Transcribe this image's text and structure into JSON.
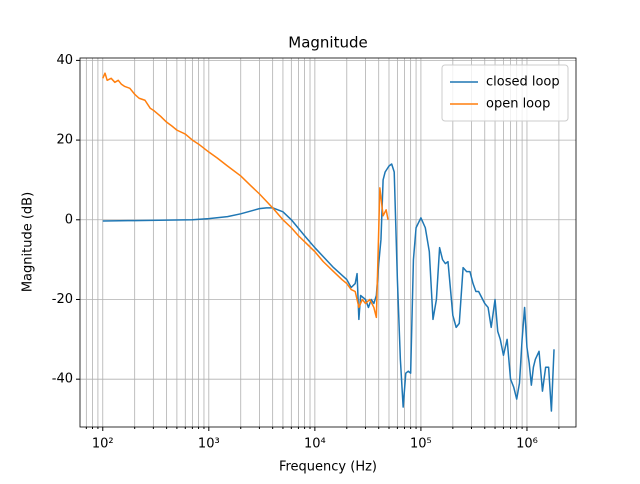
{
  "chart_data": {
    "type": "line",
    "title": "Magnitude",
    "x_label": "Frequency (Hz)",
    "y_label": "Magnitude (dB)",
    "xscale": "log",
    "grid": true,
    "legend": "upper right",
    "xlim": [
      61,
      2900000
    ],
    "ylim": [
      -52,
      40.6
    ],
    "xticks": [
      {
        "value": 100,
        "label": "10²"
      },
      {
        "value": 1000,
        "label": "10³"
      },
      {
        "value": 10000,
        "label": "10⁴"
      },
      {
        "value": 100000,
        "label": "10⁵"
      },
      {
        "value": 1000000,
        "label": "10⁶"
      }
    ],
    "xminorticks": [
      70,
      80,
      90,
      200,
      300,
      400,
      500,
      600,
      700,
      800,
      900,
      2000,
      3000,
      4000,
      5000,
      6000,
      7000,
      8000,
      9000,
      20000,
      30000,
      40000,
      50000,
      60000,
      70000,
      80000,
      90000,
      200000,
      300000,
      400000,
      500000,
      600000,
      700000,
      800000,
      900000,
      2000000
    ],
    "yticks": [
      -40,
      -20,
      0,
      20,
      40
    ],
    "series": [
      {
        "name": "closed loop",
        "color": "#1f77b4",
        "x": [
          100,
          200,
          400,
          700,
          1000,
          1500,
          2000,
          3000,
          3500,
          4000,
          5000,
          6000,
          8000,
          10000,
          15000,
          20000,
          22000,
          24000,
          25000,
          26000,
          27000,
          30000,
          32000,
          34000,
          36000,
          38000,
          40000,
          42000,
          44000,
          46000,
          50000,
          53000,
          56000,
          60000,
          64000,
          68000,
          72000,
          76000,
          80000,
          85000,
          90000,
          100000,
          110000,
          120000,
          130000,
          140000,
          150000,
          160000,
          170000,
          180000,
          200000,
          215000,
          230000,
          250000,
          270000,
          290000,
          310000,
          330000,
          350000,
          400000,
          430000,
          460000,
          500000,
          530000,
          560000,
          600000,
          650000,
          700000,
          750000,
          800000,
          850000,
          900000,
          950000,
          1000000,
          1050000,
          1100000,
          1150000,
          1200000,
          1300000,
          1400000,
          1500000,
          1600000,
          1700000,
          1800000
        ],
        "values": [
          -0.3,
          -0.2,
          -0.1,
          0,
          0.3,
          0.8,
          1.5,
          2.8,
          3,
          3,
          2,
          0,
          -4,
          -7,
          -12,
          -15,
          -17,
          -16,
          -13.5,
          -25,
          -19,
          -20,
          -22,
          -20,
          -21,
          -19,
          -11,
          -5,
          10,
          12,
          13.5,
          14,
          12,
          -15,
          -35,
          -47,
          -38.5,
          -38,
          -38.5,
          -10,
          -2,
          0.5,
          -2,
          -8,
          -25,
          -20,
          -7,
          -10,
          -11,
          -10.5,
          -24,
          -27,
          -26,
          -12,
          -13,
          -13,
          -16,
          -18,
          -18,
          -21,
          -22,
          -27,
          -20,
          -28,
          -30,
          -34,
          -30,
          -40,
          -42,
          -45,
          -41,
          -30,
          -22,
          -32,
          -36,
          -41.5,
          -37,
          -35,
          -33,
          -43,
          -37,
          -37,
          -48,
          -32.5
        ]
      },
      {
        "name": "open loop",
        "color": "#ff7f0e",
        "x": [
          100,
          105,
          110,
          120,
          130,
          140,
          150,
          160,
          180,
          200,
          220,
          250,
          280,
          300,
          350,
          400,
          450,
          500,
          600,
          700,
          800,
          1000,
          1200,
          1500,
          2000,
          2500,
          3000,
          4000,
          5000,
          6000,
          7000,
          8000,
          10000,
          12000,
          15000,
          18000,
          20000,
          22000,
          24000,
          25000,
          26000,
          28000,
          30000,
          33000,
          36000,
          38000,
          41000,
          44000,
          47000,
          49000
        ],
        "values": [
          35.5,
          36.8,
          35,
          35.5,
          34.5,
          35,
          34,
          33.5,
          33,
          31.5,
          30.5,
          30,
          28,
          27.5,
          26,
          24.5,
          23.5,
          22.5,
          21.5,
          20,
          19,
          17,
          15.5,
          13.5,
          11,
          8.5,
          6.5,
          3,
          0,
          -2,
          -4,
          -5.5,
          -8,
          -10.5,
          -13,
          -15,
          -16,
          -17.5,
          -18,
          -20,
          -22,
          -20,
          -21,
          -20,
          -22,
          -24.5,
          8,
          1,
          2.5,
          0
        ]
      }
    ]
  }
}
